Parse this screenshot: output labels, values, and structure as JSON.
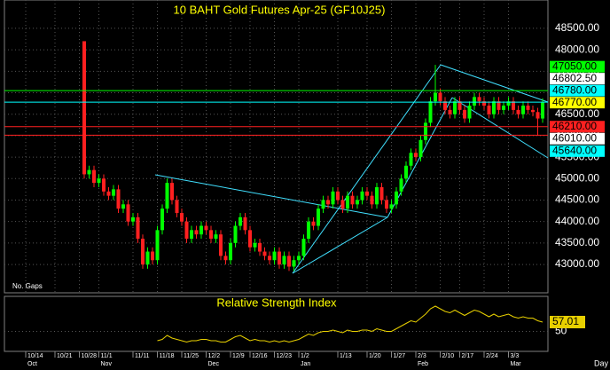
{
  "chart_data": {
    "type": "candlestick",
    "title": "10  BAHT  Gold Futures Apr-25  (GF10J25)",
    "note": "No. Gaps",
    "x_unit": "Day",
    "up_color": "#00ff00",
    "down_color": "#ff2020",
    "grid": true,
    "open": [
      48200,
      45100,
      45200,
      44900,
      45000,
      44700,
      44600,
      44750,
      44300,
      44400,
      44000,
      44100,
      43600,
      43000,
      43300,
      43100,
      43800,
      44300,
      44900,
      44500,
      44200,
      44000,
      43600,
      43800,
      43700,
      43900,
      43800,
      43600,
      43700,
      43200,
      43100,
      43500,
      43900,
      44100,
      43800,
      43400,
      43500,
      43300,
      43200,
      43100,
      43300,
      43000,
      43200,
      42950,
      43100,
      43200,
      43600,
      44000,
      43900,
      44300,
      44500,
      44400,
      44700,
      44500,
      44300,
      44600,
      44400,
      44500,
      44700,
      44600,
      44400,
      44800,
      44500,
      44300,
      44400,
      44700,
      45000,
      45300,
      45600,
      45500,
      45900,
      46300,
      46800,
      47000,
      46800,
      46600,
      46500,
      46800,
      46600,
      46400,
      46700,
      46900,
      46800,
      46700,
      46500,
      46800,
      46600,
      46700,
      46800,
      46600,
      46500,
      46700,
      46600,
      46550,
      46400
    ],
    "high": [
      48200,
      45300,
      45300,
      45100,
      45100,
      44800,
      44850,
      44850,
      44500,
      44500,
      44200,
      44200,
      43700,
      43400,
      43400,
      43900,
      44400,
      45000,
      45000,
      44600,
      44300,
      44100,
      43900,
      43900,
      44000,
      44000,
      43900,
      43800,
      43800,
      43300,
      43600,
      44000,
      44200,
      44200,
      43900,
      43600,
      43600,
      43400,
      43300,
      43400,
      43400,
      43300,
      43300,
      43200,
      43300,
      43700,
      44100,
      44100,
      44400,
      44600,
      44600,
      44800,
      44800,
      44600,
      44700,
      44700,
      44600,
      44800,
      44800,
      44700,
      44900,
      44900,
      44600,
      44500,
      44800,
      45100,
      45400,
      45700,
      45700,
      46000,
      46400,
      46900,
      47650,
      47100,
      46900,
      46700,
      46900,
      46900,
      46700,
      46800,
      47000,
      47000,
      46900,
      46800,
      46900,
      46900,
      46800,
      46900,
      46900,
      46700,
      46800,
      46800,
      46700,
      46650,
      46870
    ],
    "low": [
      45000,
      45000,
      44800,
      44800,
      44600,
      44500,
      44500,
      44200,
      44200,
      43900,
      43900,
      43500,
      42900,
      42900,
      43000,
      43000,
      43700,
      44200,
      44400,
      44100,
      43900,
      43500,
      43500,
      43600,
      43600,
      43700,
      43500,
      43500,
      43100,
      43000,
      43000,
      43400,
      43800,
      43700,
      43300,
      43300,
      43200,
      43100,
      43000,
      43000,
      42900,
      42900,
      42850,
      42850,
      43000,
      43100,
      43500,
      43800,
      43800,
      44200,
      44300,
      44300,
      44400,
      44200,
      44200,
      44300,
      44300,
      44400,
      44500,
      44300,
      44300,
      44400,
      44200,
      44200,
      44300,
      44600,
      44900,
      45200,
      45400,
      45400,
      45800,
      46200,
      46700,
      46700,
      46500,
      46400,
      46400,
      46500,
      46300,
      46300,
      46600,
      46700,
      46600,
      46400,
      46400,
      46500,
      46500,
      46600,
      46500,
      46400,
      46400,
      46500,
      46450,
      46000,
      46300
    ],
    "close": [
      45100,
      45200,
      44900,
      45000,
      44700,
      44600,
      44750,
      44300,
      44400,
      44000,
      44100,
      43600,
      43000,
      43300,
      43100,
      43800,
      44300,
      44900,
      44500,
      44200,
      44000,
      43600,
      43800,
      43700,
      43900,
      43800,
      43600,
      43700,
      43200,
      43100,
      43500,
      43900,
      44100,
      43800,
      43400,
      43500,
      43300,
      43200,
      43100,
      43300,
      43000,
      43200,
      42950,
      43100,
      43200,
      43600,
      44000,
      43900,
      44300,
      44500,
      44400,
      44700,
      44500,
      44300,
      44600,
      44400,
      44500,
      44700,
      44600,
      44400,
      44800,
      44500,
      44300,
      44400,
      44700,
      45000,
      45300,
      45600,
      45500,
      45900,
      46300,
      46800,
      47000,
      46800,
      46600,
      46500,
      46800,
      46600,
      46400,
      46700,
      46900,
      46800,
      46700,
      46500,
      46800,
      46600,
      46700,
      46800,
      46600,
      46500,
      46700,
      46600,
      46550,
      46400,
      46770
    ],
    "ylim": [
      42340,
      49160
    ],
    "yticks": [
      {
        "value": 43000,
        "label": "43000.00"
      },
      {
        "value": 43500,
        "label": "43500.00"
      },
      {
        "value": 44000,
        "label": "44000.00"
      },
      {
        "value": 44500,
        "label": "44500.00"
      },
      {
        "value": 45000,
        "label": "45000.00"
      },
      {
        "value": 45500,
        "label": "45500.00"
      },
      {
        "value": 46000,
        "label": "46000.00"
      },
      {
        "value": 46500,
        "label": "46500.00"
      },
      {
        "value": 47000,
        "label": "47000.00"
      },
      {
        "value": 47500,
        "label": "47500.00"
      },
      {
        "value": 48000,
        "label": "48000.00"
      },
      {
        "value": 48500,
        "label": "48500.00"
      }
    ],
    "xticks": [
      {
        "value": -12,
        "label": "10/14"
      },
      {
        "value": -6,
        "label": "10/21"
      },
      {
        "value": -1,
        "label": "10/28"
      },
      {
        "value": 3,
        "label": "11/1"
      },
      {
        "value": 10,
        "label": "11/11"
      },
      {
        "value": 15,
        "label": "11/18"
      },
      {
        "value": 20,
        "label": "11/25"
      },
      {
        "value": 25,
        "label": "12/2"
      },
      {
        "value": 30,
        "label": "12/9"
      },
      {
        "value": 34,
        "label": "12/16"
      },
      {
        "value": 39,
        "label": "12/23"
      },
      {
        "value": 44,
        "label": "1/2"
      },
      {
        "value": 52,
        "label": "1/13"
      },
      {
        "value": 58,
        "label": "1/20"
      },
      {
        "value": 63,
        "label": "1/27"
      },
      {
        "value": 68,
        "label": "2/3"
      },
      {
        "value": 73,
        "label": "2/10"
      },
      {
        "value": 77,
        "label": "2/17"
      },
      {
        "value": 82,
        "label": "2/24"
      },
      {
        "value": 87,
        "label": "3/3"
      }
    ],
    "months": [
      {
        "value": -12,
        "label": "Oct"
      },
      {
        "value": 3,
        "label": "Nov"
      },
      {
        "value": 25,
        "label": "Dec"
      },
      {
        "value": 44,
        "label": "Jan"
      },
      {
        "value": 68,
        "label": "Feb"
      },
      {
        "value": 87,
        "label": "Mar"
      }
    ],
    "levels": [
      {
        "value": 47050,
        "label": "47050.00",
        "color": "#00ff00",
        "line": true
      },
      {
        "value": 46802.5,
        "label": "46802.50",
        "color": "#ffffff",
        "line": false
      },
      {
        "value": 46780,
        "label": "46780.00",
        "color": "#00ffff",
        "line": true
      },
      {
        "value": 46770,
        "label": "46770.00",
        "color": "#ffff00",
        "line": false
      },
      {
        "value": 46210,
        "label": "46210.00",
        "color": "#ff2020",
        "line": true
      },
      {
        "value": 46010,
        "label": "46010.00",
        "color": "#ffffff",
        "line": true
      },
      {
        "value": 45640,
        "label": "45640.00",
        "color": "#00ffff",
        "line": false
      }
    ],
    "rsi": {
      "title": "Relative Strength Index",
      "color": "#e8d000",
      "ylim": [
        35,
        75
      ],
      "yticks": [
        50
      ],
      "values": [
        null,
        null,
        null,
        null,
        null,
        null,
        null,
        null,
        null,
        null,
        null,
        null,
        null,
        null,
        null,
        43,
        44,
        47,
        45,
        44,
        43,
        42,
        43,
        43,
        44,
        44,
        43,
        43,
        42,
        42,
        44,
        46,
        47,
        45,
        43,
        44,
        43,
        43,
        42,
        43,
        42,
        43,
        42,
        43,
        44,
        46,
        48,
        47,
        49,
        50,
        50,
        51,
        50,
        49,
        51,
        50,
        50,
        51,
        51,
        50,
        52,
        51,
        50,
        50,
        52,
        54,
        56,
        58,
        57,
        60,
        63,
        67,
        69,
        67,
        65,
        64,
        66,
        64,
        62,
        64,
        66,
        65,
        63,
        61,
        63,
        61,
        62,
        63,
        61,
        60,
        61,
        60,
        60,
        58,
        57.01
      ]
    }
  }
}
